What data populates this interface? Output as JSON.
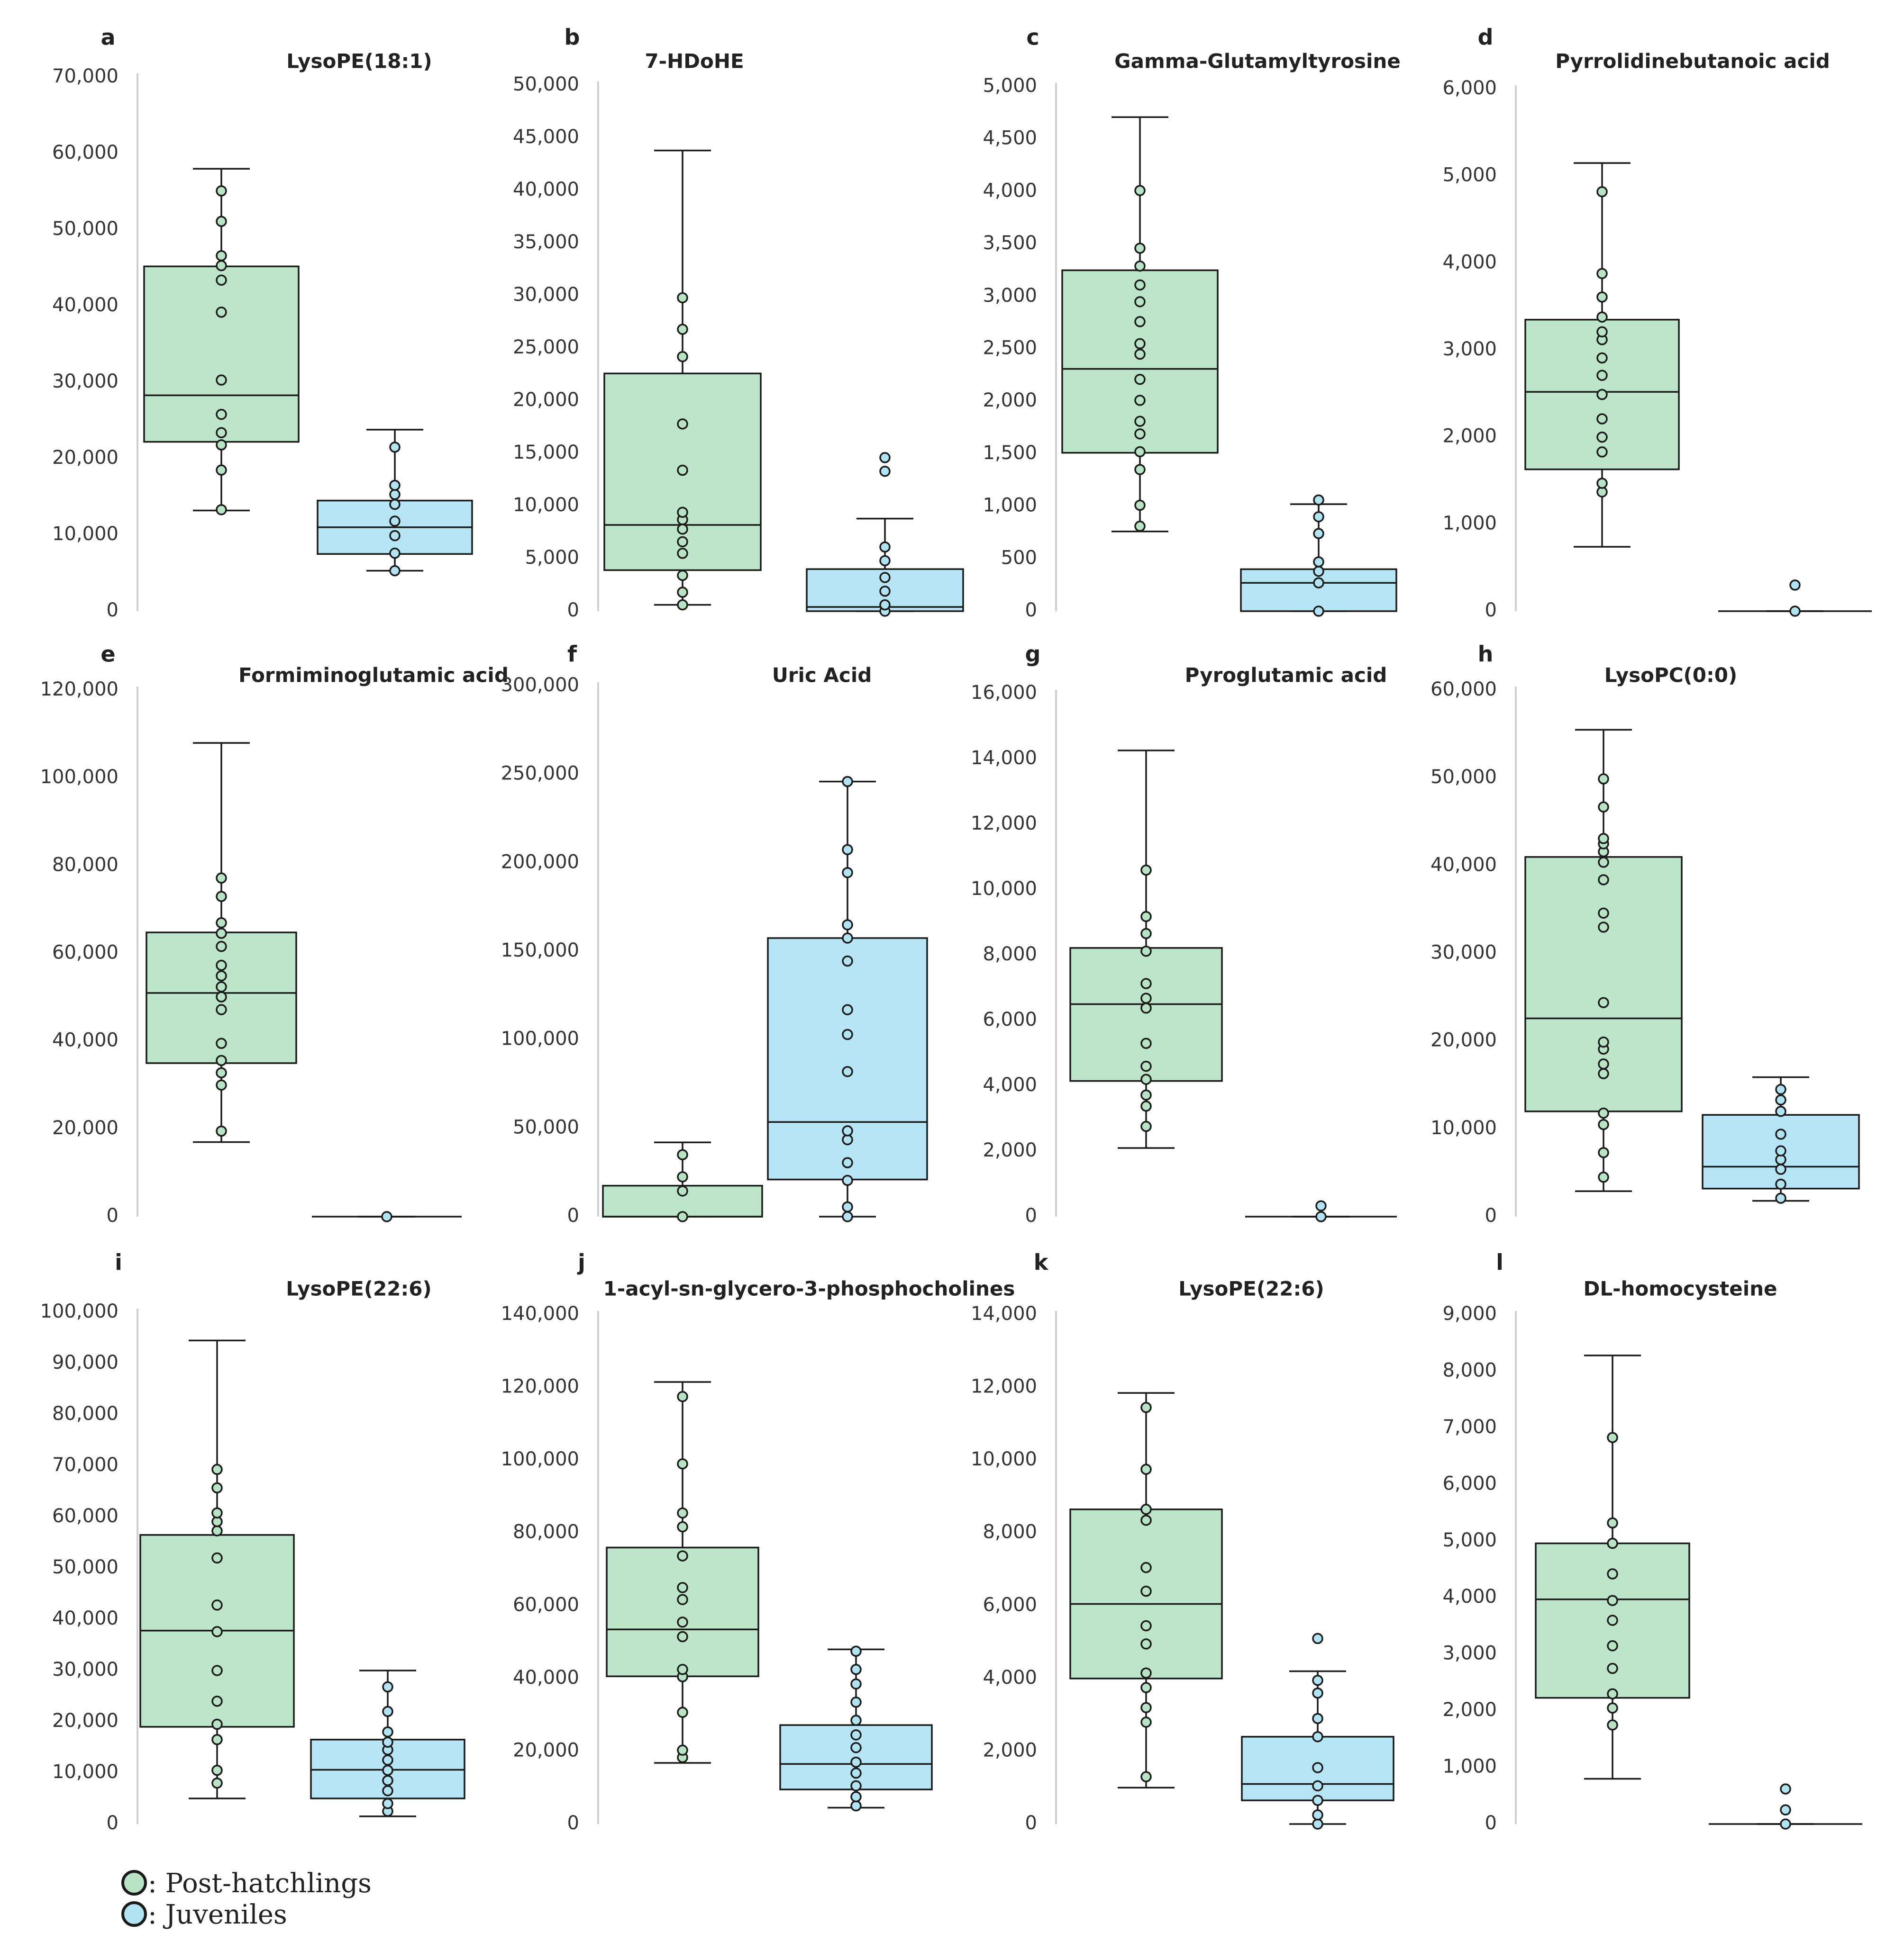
{
  "chart_data": [
    {
      "type": "box",
      "letter": "a",
      "title": "LysoPE(18:1)",
      "ylim": [
        0,
        70000
      ],
      "yticks": [
        "0",
        "10,000",
        "20,000",
        "30,000",
        "40,000",
        "50,000",
        "60,000",
        "70,000"
      ],
      "series": [
        {
          "name": "Post-hatchlings",
          "whisker_low": 13200,
          "q1": 22200,
          "median": 28300,
          "q3": 45200,
          "whisker_high": 58000,
          "points": [
            13300,
            18500,
            21800,
            23400,
            25800,
            30300,
            39200,
            43400,
            45300,
            46600,
            51100,
            55100
          ]
        },
        {
          "name": "Juveniles",
          "whisker_low": 5300,
          "q1": 7500,
          "median": 11000,
          "q3": 14500,
          "whisker_high": 23800,
          "points": [
            5300,
            7600,
            9900,
            11800,
            14000,
            15300,
            16500,
            21500
          ]
        }
      ]
    },
    {
      "type": "box",
      "letter": "b",
      "title": "7-HDoHE",
      "ylim": [
        0,
        50000
      ],
      "yticks": [
        "0",
        "5,000",
        "10,000",
        "15,000",
        "20,000",
        "25,000",
        "30,000",
        "35,000",
        "40,000",
        "45,000",
        "50,000"
      ],
      "series": [
        {
          "name": "Post-hatchlings",
          "whisker_low": 600,
          "q1": 3900,
          "median": 8200,
          "q3": 22600,
          "whisker_high": 43800,
          "points": [
            600,
            1800,
            3400,
            5500,
            6600,
            7800,
            8700,
            9400,
            13400,
            17800,
            24200,
            26800,
            29800
          ]
        },
        {
          "name": "Juveniles",
          "whisker_low": 0,
          "q1": 0,
          "median": 400,
          "q3": 4000,
          "whisker_high": 8800,
          "points": [
            0,
            600,
            1900,
            3200,
            4800,
            6100,
            13300,
            14600
          ]
        }
      ]
    },
    {
      "type": "box",
      "letter": "c",
      "title": "Gamma-Glutamyltyrosine",
      "ylim": [
        0,
        5000
      ],
      "yticks": [
        "0",
        "500",
        "1,000",
        "1,500",
        "2,000",
        "2,500",
        "3,000",
        "3,500",
        "4,000",
        "4,500",
        "5,000"
      ],
      "series": [
        {
          "name": "Post-hatchlings",
          "whisker_low": 760,
          "q1": 1510,
          "median": 2310,
          "q3": 3250,
          "whisker_high": 4710,
          "points": [
            810,
            1010,
            1350,
            1520,
            1690,
            1810,
            2010,
            2210,
            2450,
            2550,
            2760,
            2950,
            3110,
            3290,
            3460,
            4010
          ]
        },
        {
          "name": "Juveniles",
          "whisker_low": 0,
          "q1": 0,
          "median": 270,
          "q3": 400,
          "whisker_high": 1020,
          "points": [
            0,
            270,
            380,
            470,
            740,
            900,
            1060
          ]
        }
      ]
    },
    {
      "type": "box",
      "letter": "d",
      "title": "Pyrrolidinebutanoic acid",
      "ylim": [
        0,
        6000
      ],
      "yticks": [
        "0",
        "1,000",
        "2,000",
        "3,000",
        "4,000",
        "5,000",
        "6,000"
      ],
      "series": [
        {
          "name": "Post-hatchlings",
          "whisker_low": 740,
          "q1": 1630,
          "median": 2520,
          "q3": 3350,
          "whisker_high": 5150,
          "points": [
            1370,
            1470,
            1830,
            2000,
            2210,
            2490,
            2710,
            2910,
            3120,
            3210,
            3380,
            3610,
            3880,
            4820
          ]
        },
        {
          "name": "Juveniles",
          "whisker_low": 0,
          "q1": 0,
          "median": 0,
          "q3": 0,
          "whisker_high": 0,
          "points": [
            0,
            300
          ]
        }
      ]
    },
    {
      "type": "box",
      "letter": "e",
      "title": "Formiminoglutamic acid",
      "ylim": [
        0,
        120000
      ],
      "yticks": [
        "0",
        "20,000",
        "40,000",
        "60,000",
        "80,000",
        "100,000",
        "120,000"
      ],
      "series": [
        {
          "name": "Post-hatchlings",
          "whisker_low": 17000,
          "q1": 35000,
          "median": 51000,
          "q3": 64800,
          "whisker_high": 108000,
          "points": [
            19500,
            30000,
            32800,
            35600,
            39500,
            47200,
            50100,
            52400,
            54900,
            57300,
            61600,
            64600,
            67000,
            73000,
            77200
          ]
        },
        {
          "name": "Juveniles",
          "whisker_low": 0,
          "q1": 0,
          "median": 0,
          "q3": 0,
          "whisker_high": 0,
          "points": [
            0
          ]
        }
      ]
    },
    {
      "type": "box",
      "letter": "f",
      "title": "Uric Acid",
      "ylim": [
        0,
        300000
      ],
      "yticks": [
        "0",
        "50,000",
        "100,000",
        "150,000",
        "200,000",
        "250,000",
        "300,000"
      ],
      "series": [
        {
          "name": "Post-hatchlings",
          "whisker_low": 0,
          "q1": 0,
          "median": 0,
          "q3": 17500,
          "whisker_high": 42000,
          "points": [
            0,
            14500,
            22500,
            35000
          ]
        },
        {
          "name": "Juveniles",
          "whisker_low": 0,
          "q1": 21000,
          "median": 53500,
          "q3": 157500,
          "whisker_high": 246000,
          "points": [
            0,
            5500,
            20500,
            30500,
            43500,
            48500,
            82000,
            103000,
            117000,
            144500,
            157500,
            165000,
            194500,
            207500,
            246000
          ]
        }
      ]
    },
    {
      "type": "box",
      "letter": "g",
      "title": "Pyroglutamic acid",
      "ylim": [
        0,
        16000
      ],
      "yticks": [
        "0",
        "2,000",
        "4,000",
        "6,000",
        "8,000",
        "10,000",
        "12,000",
        "14,000",
        "16,000"
      ],
      "series": [
        {
          "name": "Post-hatchlings",
          "whisker_low": 2100,
          "q1": 4150,
          "median": 6500,
          "q3": 8220,
          "whisker_high": 14260,
          "points": [
            2760,
            3380,
            3720,
            4200,
            4600,
            5300,
            6380,
            6680,
            7130,
            8120,
            8660,
            9180,
            10600
          ]
        },
        {
          "name": "Juveniles",
          "whisker_low": 0,
          "q1": 0,
          "median": 0,
          "q3": 0,
          "whisker_high": 0,
          "points": [
            0,
            330
          ]
        }
      ]
    },
    {
      "type": "box",
      "letter": "h",
      "title": "LysoPC(0:0)",
      "ylim": [
        0,
        60000
      ],
      "yticks": [
        "0",
        "10,000",
        "20,000",
        "30,000",
        "40,000",
        "50,000",
        "60,000"
      ],
      "series": [
        {
          "name": "Post-hatchlings",
          "whisker_low": 2900,
          "q1": 12000,
          "median": 22600,
          "q3": 41000,
          "whisker_high": 55500,
          "points": [
            4500,
            7300,
            10500,
            11800,
            16300,
            17400,
            19100,
            19900,
            24400,
            33000,
            34600,
            38400,
            40400,
            41600,
            42500,
            43100,
            46700,
            49900
          ]
        },
        {
          "name": "Juveniles",
          "whisker_low": 1800,
          "q1": 3200,
          "median": 5700,
          "q3": 11600,
          "whisker_high": 15900,
          "points": [
            2100,
            3700,
            5400,
            6500,
            7500,
            9400,
            12000,
            13300,
            14500
          ]
        }
      ]
    },
    {
      "type": "box",
      "letter": "i",
      "title": "LysoPE(22:6)",
      "ylim": [
        0,
        100000
      ],
      "yticks": [
        "0",
        "10,000",
        "20,000",
        "30,000",
        "40,000",
        "50,000",
        "60,000",
        "70,000",
        "80,000",
        "90,000",
        "100,000"
      ],
      "series": [
        {
          "name": "Post-hatchlings",
          "whisker_low": 5000,
          "q1": 19000,
          "median": 37800,
          "q3": 56500,
          "whisker_high": 94500,
          "points": [
            8000,
            10500,
            16500,
            19500,
            24000,
            30000,
            37600,
            42800,
            52000,
            57300,
            59100,
            60800,
            65700,
            69300
          ]
        },
        {
          "name": "Juveniles",
          "whisker_low": 1500,
          "q1": 5000,
          "median": 10600,
          "q3": 16500,
          "whisker_high": 30000,
          "points": [
            2500,
            4000,
            6500,
            8500,
            10500,
            12500,
            14500,
            16000,
            18000,
            22000,
            26800
          ]
        }
      ]
    },
    {
      "type": "box",
      "letter": "j",
      "title": "1-acyl-sn-glycero-3-phosphocholines",
      "ylim": [
        0,
        140000
      ],
      "yticks": [
        "0",
        "20,000",
        "40,000",
        "60,000",
        "80,000",
        "100,000",
        "120,000",
        "140,000"
      ],
      "series": [
        {
          "name": "Post-hatchlings",
          "whisker_low": 16800,
          "q1": 40600,
          "median": 53500,
          "q3": 76000,
          "whisker_high": 121500,
          "points": [
            18300,
            20300,
            30700,
            40500,
            42500,
            51500,
            55500,
            61700,
            65000,
            73700,
            81700,
            85500,
            99000,
            117500
          ]
        },
        {
          "name": "Juveniles",
          "whisker_low": 4500,
          "q1": 9500,
          "median": 16500,
          "q3": 27200,
          "whisker_high": 48000,
          "points": [
            5000,
            7500,
            10500,
            14000,
            17000,
            21000,
            24500,
            28500,
            33500,
            38500,
            42500,
            47500
          ]
        }
      ]
    },
    {
      "type": "box",
      "letter": "k",
      "title": "LysoPE(22:6)",
      "ylim": [
        0,
        14000
      ],
      "yticks": [
        "0",
        "2,000",
        "4,000",
        "6,000",
        "8,000",
        "10,000",
        "12,000",
        "14,000"
      ],
      "series": [
        {
          "name": "Post-hatchlings",
          "whisker_low": 1000,
          "q1": 4000,
          "median": 6050,
          "q3": 8650,
          "whisker_high": 11850,
          "points": [
            1300,
            2800,
            3200,
            3750,
            4150,
            4950,
            5450,
            6400,
            7050,
            8350,
            8650,
            9750,
            11450
          ]
        },
        {
          "name": "Juveniles",
          "whisker_low": 0,
          "q1": 650,
          "median": 1100,
          "q3": 2400,
          "whisker_high": 4200,
          "points": [
            0,
            250,
            650,
            1050,
            1550,
            2400,
            2900,
            3600,
            3950,
            5100
          ]
        }
      ]
    },
    {
      "type": "box",
      "letter": "l",
      "title": "DL-homocysteine",
      "ylim": [
        0,
        9000
      ],
      "yticks": [
        "0",
        "1,000",
        "2,000",
        "3,000",
        "4,000",
        "5,000",
        "6,000",
        "7,000",
        "8,000",
        "9,000"
      ],
      "series": [
        {
          "name": "Post-hatchlings",
          "whisker_low": 800,
          "q1": 2230,
          "median": 3970,
          "q3": 4960,
          "whisker_high": 8280,
          "points": [
            1750,
            2050,
            2300,
            2750,
            3150,
            3600,
            3950,
            4420,
            4960,
            5320,
            6830
          ]
        },
        {
          "name": "Juveniles",
          "whisker_low": 0,
          "q1": 0,
          "median": 0,
          "q3": 0,
          "whisker_high": 0,
          "points": [
            0,
            250,
            620
          ]
        }
      ]
    }
  ],
  "legend": [
    {
      "label": ": Post-hatchlings",
      "color": "#b8e3c4"
    },
    {
      "label": ": Juveniles",
      "color": "#b2e3f2"
    }
  ],
  "colors": {
    "post_box": "#bde5c9",
    "juv_box": "#b6e6f6",
    "post_dot": "#b8e3c4",
    "juv_dot": "#b2e3f2",
    "stroke": "#1a1a1a",
    "axis": "#d0d0d0"
  }
}
